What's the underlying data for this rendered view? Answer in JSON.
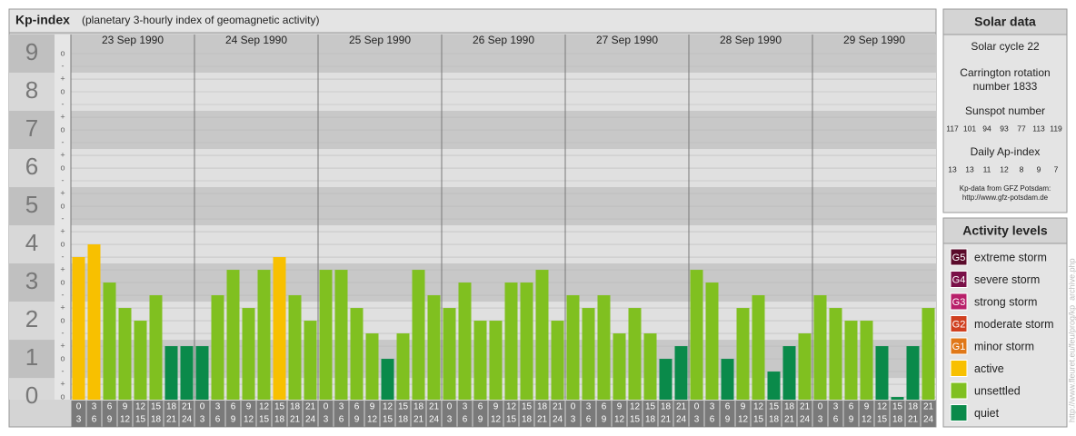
{
  "chart_data": {
    "type": "bar",
    "title": "Kp-index",
    "subtitle": "(planetary 3-hourly index of geomagnetic activity)",
    "ylim": [
      -0.07,
      9.5
    ],
    "yticks": [
      0,
      1,
      2,
      3,
      4,
      5,
      6,
      7,
      8,
      9
    ],
    "minor_ticks": [
      {
        "value": 9,
        "label": "o"
      },
      {
        "value": 8.667,
        "label": "-"
      },
      {
        "value": 8.333,
        "label": "+"
      },
      {
        "value": 8,
        "label": "o"
      },
      {
        "value": 7.667,
        "label": "-"
      },
      {
        "value": 7.333,
        "label": "+"
      },
      {
        "value": 7,
        "label": "o"
      },
      {
        "value": 6.667,
        "label": "-"
      },
      {
        "value": 6.333,
        "label": "+"
      },
      {
        "value": 6,
        "label": "o"
      },
      {
        "value": 5.667,
        "label": "-"
      },
      {
        "value": 5.333,
        "label": "+"
      },
      {
        "value": 5,
        "label": "o"
      },
      {
        "value": 4.667,
        "label": "-"
      },
      {
        "value": 4.333,
        "label": "+"
      },
      {
        "value": 4,
        "label": "o"
      },
      {
        "value": 3.667,
        "label": "-"
      },
      {
        "value": 3.333,
        "label": "+"
      },
      {
        "value": 3,
        "label": "o"
      },
      {
        "value": 2.667,
        "label": "-"
      },
      {
        "value": 2.333,
        "label": "+"
      },
      {
        "value": 2,
        "label": "o"
      },
      {
        "value": 1.667,
        "label": "-"
      },
      {
        "value": 1.333,
        "label": "+"
      },
      {
        "value": 1,
        "label": "o"
      },
      {
        "value": 0.667,
        "label": "-"
      },
      {
        "value": 0.333,
        "label": "+"
      },
      {
        "value": 0,
        "label": "o"
      }
    ],
    "hour_bins": [
      {
        "from": "0",
        "to": "3"
      },
      {
        "from": "3",
        "to": "6"
      },
      {
        "from": "6",
        "to": "9"
      },
      {
        "from": "9",
        "to": "12"
      },
      {
        "from": "12",
        "to": "15"
      },
      {
        "from": "15",
        "to": "18"
      },
      {
        "from": "18",
        "to": "21"
      },
      {
        "from": "21",
        "to": "24"
      }
    ],
    "days": [
      {
        "date": "23 Sep 1990",
        "values": [
          3.667,
          4,
          3,
          2.333,
          2,
          2.667,
          1.333,
          1.333
        ],
        "colors": [
          "#f8c000",
          "#f8c000",
          "#80c020",
          "#80c020",
          "#80c020",
          "#80c020",
          "#0a8a4a",
          "#0a8a4a"
        ]
      },
      {
        "date": "24 Sep 1990",
        "values": [
          1.333,
          2.667,
          3.333,
          2.333,
          3.333,
          3.667,
          2.667,
          2
        ],
        "colors": [
          "#0a8a4a",
          "#80c020",
          "#80c020",
          "#80c020",
          "#80c020",
          "#f8c000",
          "#80c020",
          "#80c020"
        ]
      },
      {
        "date": "25 Sep 1990",
        "values": [
          3.333,
          3.333,
          2.333,
          1.667,
          1,
          1.667,
          3.333,
          2.667
        ],
        "colors": [
          "#80c020",
          "#80c020",
          "#80c020",
          "#80c020",
          "#0a8a4a",
          "#80c020",
          "#80c020",
          "#80c020"
        ]
      },
      {
        "date": "26 Sep 1990",
        "values": [
          2.333,
          3,
          2,
          2,
          3,
          3,
          3.333,
          2
        ],
        "colors": [
          "#80c020",
          "#80c020",
          "#80c020",
          "#80c020",
          "#80c020",
          "#80c020",
          "#80c020",
          "#80c020"
        ]
      },
      {
        "date": "27 Sep 1990",
        "values": [
          2.667,
          2.333,
          2.667,
          1.667,
          2.333,
          1.667,
          1,
          1.333
        ],
        "colors": [
          "#80c020",
          "#80c020",
          "#80c020",
          "#80c020",
          "#80c020",
          "#80c020",
          "#0a8a4a",
          "#0a8a4a"
        ]
      },
      {
        "date": "28 Sep 1990",
        "values": [
          3.333,
          3,
          1,
          2.333,
          2.667,
          0.667,
          1.333,
          1.667
        ],
        "colors": [
          "#80c020",
          "#80c020",
          "#0a8a4a",
          "#80c020",
          "#80c020",
          "#0a8a4a",
          "#0a8a4a",
          "#80c020"
        ]
      },
      {
        "date": "29 Sep 1990",
        "values": [
          2.667,
          2.333,
          2,
          2,
          1.333,
          0,
          1.333,
          2.333
        ],
        "colors": [
          "#80c020",
          "#80c020",
          "#80c020",
          "#80c020",
          "#0a8a4a",
          "#0a8a4a",
          "#0a8a4a",
          "#80c020"
        ]
      }
    ]
  },
  "solar": {
    "title": "Solar data",
    "cycle": "Solar cycle 22",
    "carrington": [
      "Carrington rotation",
      "number 1833"
    ],
    "sunspot_title": "Sunspot number",
    "sunspots": [
      117,
      101,
      94,
      93,
      77,
      113,
      119
    ],
    "ap_title": "Daily Ap-index",
    "ap": [
      13,
      13,
      11,
      12,
      8,
      9,
      7
    ],
    "source": [
      "Kp-data from GFZ Potsdam:",
      "http://www.gfz-potsdam.de"
    ]
  },
  "levels": {
    "title": "Activity levels",
    "items": [
      {
        "badge": "G5",
        "label": "extreme storm",
        "color": "#5a0a2a"
      },
      {
        "badge": "G4",
        "label": "severe storm",
        "color": "#7a1048"
      },
      {
        "badge": "G3",
        "label": "strong storm",
        "color": "#b8206a"
      },
      {
        "badge": "G2",
        "label": "moderate storm",
        "color": "#d04020"
      },
      {
        "badge": "G1",
        "label": "minor storm",
        "color": "#e07818"
      },
      {
        "label": "active",
        "color": "#f8c000"
      },
      {
        "label": "unsettled",
        "color": "#80c020"
      },
      {
        "label": "quiet",
        "color": "#0a8a4a"
      }
    ]
  },
  "side_note": "http://www.fleuret.eu/feu/prog/kp_archive.php"
}
